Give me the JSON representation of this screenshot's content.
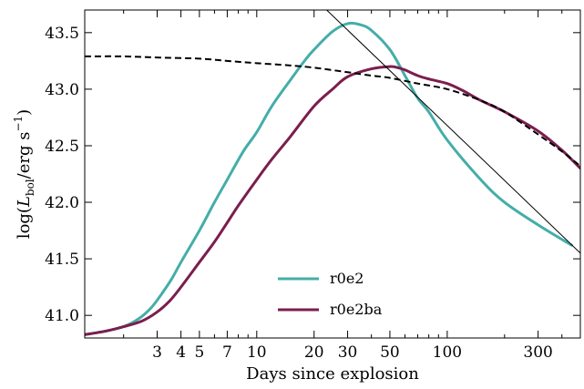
{
  "chart_data": {
    "type": "line",
    "xlabel": "Days since explosion",
    "ylabel": "log(L_bol / erg s^-1)",
    "xscale": "log",
    "xlim": [
      1.25,
      500
    ],
    "ylim": [
      40.8,
      43.7
    ],
    "x_ticks": [
      3,
      4,
      5,
      7,
      10,
      20,
      30,
      50,
      100,
      300
    ],
    "x_tick_labels": [
      "3",
      "4",
      "5",
      "7",
      "10",
      "20",
      "30",
      "50",
      "100",
      "300"
    ],
    "y_ticks": [
      41.0,
      41.5,
      42.0,
      42.5,
      43.0,
      43.5
    ],
    "y_tick_labels": [
      "41.0",
      "41.5",
      "42.0",
      "42.5",
      "43.0",
      "43.5"
    ],
    "grid": false,
    "legend_position": "lower-center",
    "series": [
      {
        "name": "r0e2",
        "color": "#45ada8",
        "style": "solid",
        "x": [
          1.25,
          1.6,
          2.0,
          2.4,
          2.8,
          3.2,
          3.6,
          4.0,
          5.0,
          6.0,
          7.0,
          8.5,
          10,
          12,
          15,
          18,
          20,
          25,
          30,
          35,
          40,
          50,
          60,
          70,
          80,
          100,
          150,
          200,
          300,
          450
        ],
        "y": [
          40.83,
          40.86,
          40.9,
          40.97,
          41.07,
          41.2,
          41.33,
          41.47,
          41.75,
          42.0,
          42.2,
          42.45,
          42.62,
          42.85,
          43.08,
          43.26,
          43.35,
          43.51,
          43.58,
          43.57,
          43.52,
          43.35,
          43.12,
          42.92,
          42.8,
          42.55,
          42.2,
          42.0,
          41.8,
          41.62
        ]
      },
      {
        "name": "r0e2ba",
        "color": "#7b1e4e",
        "style": "solid",
        "x": [
          1.25,
          1.6,
          2.0,
          2.5,
          3.0,
          3.5,
          4.0,
          5.0,
          6.0,
          7.0,
          8.0,
          10,
          12,
          15,
          20,
          25,
          30,
          40,
          50,
          55,
          60,
          70,
          80,
          100,
          120,
          150,
          200,
          300,
          400,
          500
        ],
        "y": [
          40.83,
          40.86,
          40.9,
          40.95,
          41.03,
          41.13,
          41.25,
          41.47,
          41.65,
          41.82,
          41.97,
          42.2,
          42.38,
          42.58,
          42.85,
          43.0,
          43.11,
          43.18,
          43.2,
          43.19,
          43.17,
          43.12,
          43.09,
          43.05,
          42.99,
          42.9,
          42.8,
          42.63,
          42.46,
          42.3
        ]
      },
      {
        "name": "",
        "color": "#000000",
        "style": "dashed",
        "x": [
          1.25,
          2.0,
          3.0,
          5.0,
          7.0,
          10,
          15,
          20,
          30,
          40,
          50,
          70,
          100,
          150,
          200,
          300,
          400,
          500
        ],
        "y": [
          43.29,
          43.29,
          43.28,
          43.27,
          43.25,
          43.23,
          43.21,
          43.19,
          43.15,
          43.12,
          43.1,
          43.05,
          43.0,
          42.9,
          42.8,
          42.6,
          42.45,
          42.32
        ]
      },
      {
        "name": "",
        "color": "#000000",
        "style": "solid-thin",
        "x": [
          22,
          500
        ],
        "y": [
          43.74,
          41.55
        ]
      }
    ]
  }
}
